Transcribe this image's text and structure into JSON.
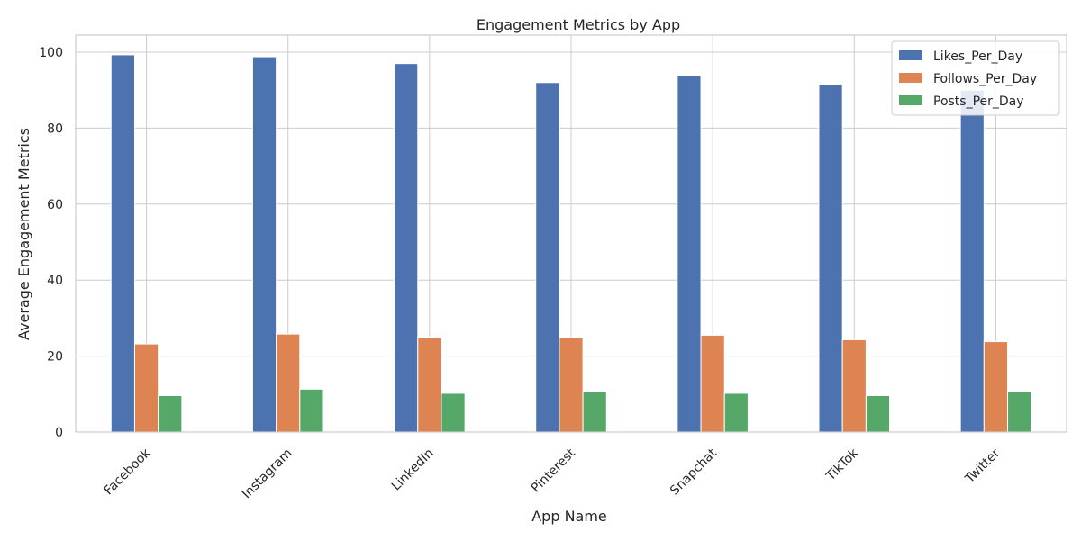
{
  "chart_data": {
    "type": "bar",
    "title": "Engagement Metrics by App",
    "xlabel": "App Name",
    "ylabel": "Average Engagement Metrics",
    "categories": [
      "Facebook",
      "Instagram",
      "LinkedIn",
      "Pinterest",
      "Snapchat",
      "TikTok",
      "Twitter"
    ],
    "series": [
      {
        "name": "Likes_Per_Day",
        "color": "#4c72b0",
        "values": [
          99.3,
          98.8,
          97.0,
          92.0,
          93.8,
          91.5,
          90.0
        ]
      },
      {
        "name": "Follows_Per_Day",
        "color": "#dd8452",
        "values": [
          23.2,
          25.8,
          25.0,
          24.8,
          25.5,
          24.3,
          23.8
        ]
      },
      {
        "name": "Posts_Per_Day",
        "color": "#55a868",
        "values": [
          9.6,
          11.3,
          10.2,
          10.6,
          10.2,
          9.6,
          10.6
        ]
      }
    ],
    "ylim": [
      0,
      104.5
    ],
    "yticks": [
      0,
      20,
      40,
      60,
      80,
      100
    ],
    "grid": true,
    "legend_position": "top-right"
  }
}
